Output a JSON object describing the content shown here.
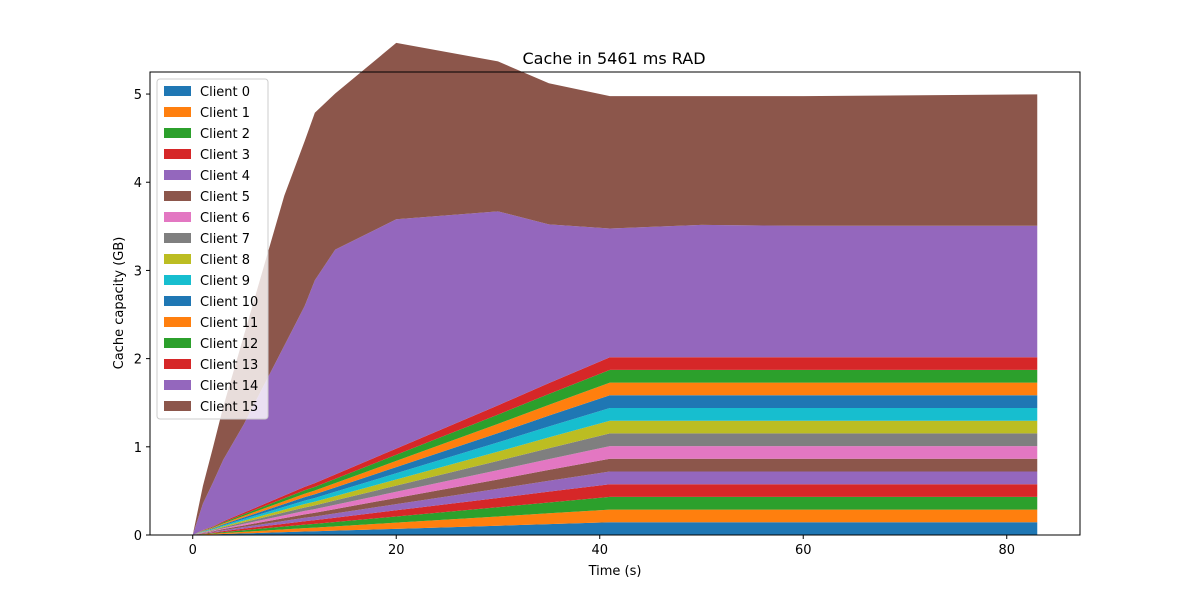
{
  "chart_data": {
    "type": "area",
    "stacked": true,
    "title": "Cache in  5461 ms RAD",
    "xlabel": "Time (s)",
    "ylabel": "Cache capacity (GB)",
    "xlim": [
      -4.2,
      87.2
    ],
    "ylim": [
      0,
      5.25
    ],
    "xticks": [
      0,
      20,
      40,
      60,
      80
    ],
    "yticks": [
      0,
      1,
      2,
      3,
      4,
      5
    ],
    "grid": false,
    "legend_position": "top-left",
    "x": [
      0,
      1,
      2,
      3,
      5,
      7,
      9,
      11,
      12,
      14,
      20,
      30,
      35,
      41,
      50,
      60,
      83
    ],
    "series": [
      {
        "name": "Client 0",
        "color": "#1f77b4",
        "values": [
          0,
          0.004,
          0.007,
          0.011,
          0.018,
          0.025,
          0.032,
          0.039,
          0.042,
          0.049,
          0.07,
          0.105,
          0.123,
          0.144,
          0.144,
          0.144,
          0.144
        ]
      },
      {
        "name": "Client 1",
        "color": "#ff7f0e",
        "values": [
          0,
          0.004,
          0.007,
          0.011,
          0.018,
          0.025,
          0.032,
          0.039,
          0.042,
          0.049,
          0.07,
          0.105,
          0.123,
          0.144,
          0.144,
          0.144,
          0.144
        ]
      },
      {
        "name": "Client 2",
        "color": "#2ca02c",
        "values": [
          0,
          0.004,
          0.007,
          0.011,
          0.018,
          0.025,
          0.032,
          0.039,
          0.042,
          0.049,
          0.07,
          0.105,
          0.123,
          0.144,
          0.144,
          0.144,
          0.144
        ]
      },
      {
        "name": "Client 3",
        "color": "#d62728",
        "values": [
          0,
          0.004,
          0.007,
          0.011,
          0.018,
          0.025,
          0.032,
          0.039,
          0.042,
          0.049,
          0.07,
          0.105,
          0.123,
          0.144,
          0.144,
          0.144,
          0.144
        ]
      },
      {
        "name": "Client 4",
        "color": "#9467bd",
        "values": [
          0,
          0.004,
          0.007,
          0.011,
          0.018,
          0.025,
          0.032,
          0.039,
          0.042,
          0.049,
          0.07,
          0.105,
          0.123,
          0.144,
          0.144,
          0.144,
          0.144
        ]
      },
      {
        "name": "Client 5",
        "color": "#8c564b",
        "values": [
          0,
          0.004,
          0.007,
          0.011,
          0.018,
          0.025,
          0.032,
          0.039,
          0.042,
          0.049,
          0.07,
          0.105,
          0.123,
          0.144,
          0.144,
          0.144,
          0.144
        ]
      },
      {
        "name": "Client 6",
        "color": "#e377c2",
        "values": [
          0,
          0.004,
          0.007,
          0.011,
          0.018,
          0.025,
          0.032,
          0.039,
          0.042,
          0.049,
          0.07,
          0.105,
          0.123,
          0.144,
          0.144,
          0.144,
          0.144
        ]
      },
      {
        "name": "Client 7",
        "color": "#7f7f7f",
        "values": [
          0,
          0.004,
          0.007,
          0.011,
          0.018,
          0.025,
          0.032,
          0.039,
          0.042,
          0.049,
          0.07,
          0.105,
          0.123,
          0.144,
          0.144,
          0.144,
          0.144
        ]
      },
      {
        "name": "Client 8",
        "color": "#bcbd22",
        "values": [
          0,
          0.004,
          0.007,
          0.011,
          0.018,
          0.025,
          0.032,
          0.039,
          0.042,
          0.049,
          0.07,
          0.105,
          0.123,
          0.144,
          0.144,
          0.144,
          0.144
        ]
      },
      {
        "name": "Client 9",
        "color": "#17becf",
        "values": [
          0,
          0.004,
          0.007,
          0.011,
          0.018,
          0.025,
          0.032,
          0.039,
          0.042,
          0.049,
          0.07,
          0.105,
          0.123,
          0.144,
          0.144,
          0.144,
          0.144
        ]
      },
      {
        "name": "Client 10",
        "color": "#1f77b4",
        "values": [
          0,
          0.004,
          0.007,
          0.011,
          0.018,
          0.025,
          0.032,
          0.039,
          0.042,
          0.049,
          0.07,
          0.105,
          0.123,
          0.144,
          0.144,
          0.144,
          0.144
        ]
      },
      {
        "name": "Client 11",
        "color": "#ff7f0e",
        "values": [
          0,
          0.004,
          0.007,
          0.011,
          0.018,
          0.025,
          0.032,
          0.039,
          0.042,
          0.049,
          0.07,
          0.105,
          0.123,
          0.144,
          0.144,
          0.144,
          0.144
        ]
      },
      {
        "name": "Client 12",
        "color": "#2ca02c",
        "values": [
          0,
          0.004,
          0.007,
          0.011,
          0.018,
          0.025,
          0.032,
          0.039,
          0.042,
          0.049,
          0.07,
          0.105,
          0.123,
          0.144,
          0.144,
          0.144,
          0.144
        ]
      },
      {
        "name": "Client 13",
        "color": "#d62728",
        "values": [
          0,
          0.004,
          0.007,
          0.011,
          0.018,
          0.025,
          0.032,
          0.039,
          0.042,
          0.049,
          0.07,
          0.105,
          0.123,
          0.144,
          0.144,
          0.144,
          0.144
        ]
      },
      {
        "name": "Client 14",
        "color": "#9467bd",
        "values": [
          0,
          0.3,
          0.5,
          0.7,
          1.0,
          1.35,
          1.7,
          2.05,
          2.3,
          2.55,
          2.6,
          2.2,
          1.8,
          1.46,
          1.5,
          1.49,
          1.49
        ]
      },
      {
        "name": "Client 15",
        "color": "#8c564b",
        "values": [
          0,
          0.2,
          0.4,
          0.6,
          1.0,
          1.35,
          1.7,
          1.87,
          1.9,
          1.77,
          2.0,
          1.7,
          1.6,
          1.5,
          1.46,
          1.47,
          1.49
        ]
      }
    ]
  }
}
